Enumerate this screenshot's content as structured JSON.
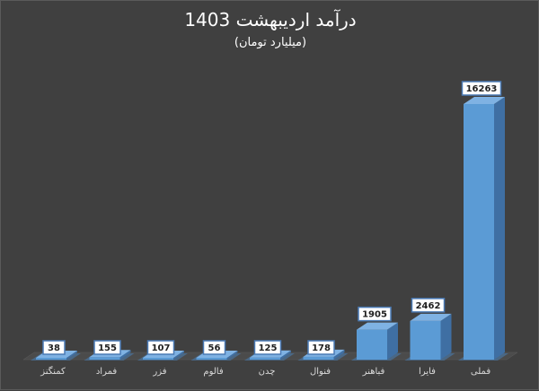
{
  "chart_data": {
    "type": "bar",
    "title": "درآمد اردیبهشت 1403",
    "subtitle": "(میلیارد تومان)",
    "xlabel": "",
    "ylabel": "",
    "categories": [
      "کمنگنز",
      "فمراد",
      "فزر",
      "فالوم",
      "چدن",
      "فنوال",
      "فباهنر",
      "فایرا",
      "فملی"
    ],
    "values": [
      38,
      155,
      107,
      56,
      125,
      178,
      1905,
      2462,
      16263
    ],
    "ylim": [
      0,
      16263
    ],
    "grid": false,
    "legend": "none",
    "colors": {
      "background": "#404040",
      "bar_front": "#5b9bd5",
      "bar_side": "#3f6fa3",
      "bar_top": "#7fb2e3",
      "floor": "#4a6f95",
      "label_fill": "#ffffff",
      "label_border": "#4a7ab5"
    }
  }
}
